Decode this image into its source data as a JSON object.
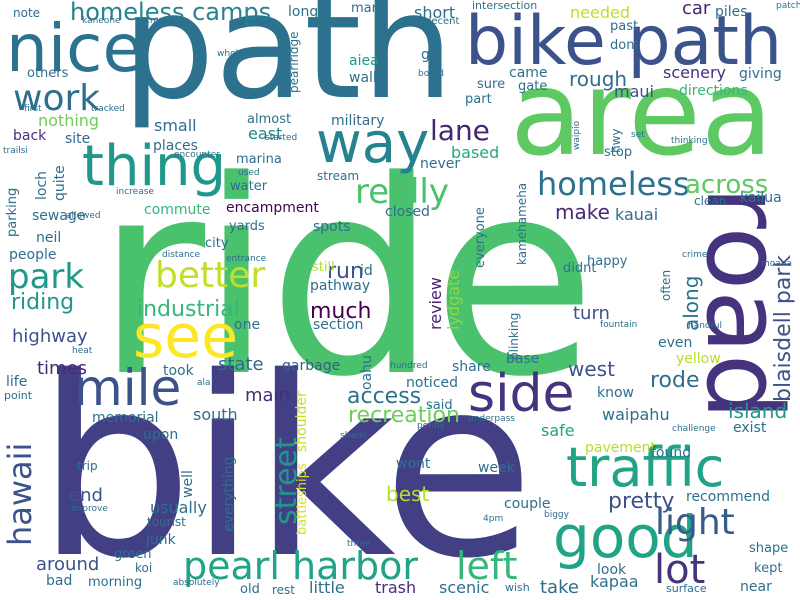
{
  "title": "word cloud",
  "words": [
    {
      "text": "ride",
      "color": "#4ac16d"
    },
    {
      "text": "bike",
      "color": "#423f85"
    },
    {
      "text": "path",
      "color": "#2c728e"
    },
    {
      "text": "area",
      "color": "#5ec962"
    },
    {
      "text": "road",
      "color": "#46337e"
    },
    {
      "text": "bike path",
      "color": "#3b528b"
    },
    {
      "text": "nice",
      "color": "#2c728e"
    },
    {
      "text": "see",
      "color": "#fde725"
    },
    {
      "text": "way",
      "color": "#26828e"
    },
    {
      "text": "thing",
      "color": "#1f988b"
    },
    {
      "text": "traffic",
      "color": "#20a386"
    },
    {
      "text": "side",
      "color": "#46337e"
    },
    {
      "text": "good",
      "color": "#20a386"
    },
    {
      "text": "mile",
      "color": "#3b528b"
    },
    {
      "text": "pearl harbor",
      "color": "#20a386"
    },
    {
      "text": "left",
      "color": "#35b779"
    },
    {
      "text": "light",
      "color": "#365c8d"
    },
    {
      "text": "lot",
      "color": "#46337e"
    },
    {
      "text": "better",
      "color": "#c2df23"
    },
    {
      "text": "work",
      "color": "#2e6f8e"
    },
    {
      "text": "park",
      "color": "#1f988b"
    },
    {
      "text": "hawaii",
      "color": "#3b528b"
    },
    {
      "text": "street",
      "color": "#1f988b"
    },
    {
      "text": "homeless",
      "color": "#2c728e"
    },
    {
      "text": "really",
      "color": "#4ac16d"
    },
    {
      "text": "lane",
      "color": "#482475"
    },
    {
      "text": "homeless camps",
      "color": "#26828e"
    },
    {
      "text": "across",
      "color": "#5ec962"
    },
    {
      "text": "blaisdell park",
      "color": "#3b528b"
    },
    {
      "text": "industrial",
      "color": "#35b779"
    },
    {
      "text": "riding",
      "color": "#1f988b"
    },
    {
      "text": "much",
      "color": "#440154"
    },
    {
      "text": "run",
      "color": "#3b528b"
    },
    {
      "text": "access",
      "color": "#2c728e"
    },
    {
      "text": "recreation",
      "color": "#6ece58"
    },
    {
      "text": "rode",
      "color": "#2e6f8e"
    },
    {
      "text": "island",
      "color": "#1f988b"
    },
    {
      "text": "west",
      "color": "#3b528b"
    },
    {
      "text": "pretty",
      "color": "#3b528b"
    },
    {
      "text": "best",
      "color": "#b5de2b"
    },
    {
      "text": "make",
      "color": "#482878"
    },
    {
      "text": "along",
      "color": "#2c728e"
    },
    {
      "text": "turn",
      "color": "#3b528b"
    },
    {
      "text": "main",
      "color": "#472d7b"
    },
    {
      "text": "state",
      "color": "#31688e"
    },
    {
      "text": "highway",
      "color": "#3b528b"
    },
    {
      "text": "times",
      "color": "#482878"
    },
    {
      "text": "end",
      "color": "#3b528b"
    },
    {
      "text": "around",
      "color": "#3b528b"
    },
    {
      "text": "take",
      "color": "#2e6f8e"
    },
    {
      "text": "kapaa",
      "color": "#2c728e"
    },
    {
      "text": "trash",
      "color": "#472d7b"
    },
    {
      "text": "scenic",
      "color": "#2e6f8e"
    },
    {
      "text": "little",
      "color": "#2e6f8e"
    },
    {
      "text": "usually",
      "color": "#2e6f8e"
    },
    {
      "text": "safe",
      "color": "#20a386"
    },
    {
      "text": "review",
      "color": "#481f70"
    },
    {
      "text": "lydgate",
      "color": "#8fd744"
    },
    {
      "text": "everything",
      "color": "#2e6f8e"
    },
    {
      "text": "battleships",
      "color": "#d8e219"
    },
    {
      "text": "shoulder",
      "color": "#c2df23"
    },
    {
      "text": "section",
      "color": "#2c728e"
    },
    {
      "text": "pathway",
      "color": "#2e6f8e"
    },
    {
      "text": "garbage",
      "color": "#365c8d"
    },
    {
      "text": "encampment",
      "color": "#440154"
    },
    {
      "text": "commute",
      "color": "#35b779"
    },
    {
      "text": "places",
      "color": "#2e6f8e"
    },
    {
      "text": "closed",
      "color": "#2e6f8e"
    },
    {
      "text": "kauai",
      "color": "#2e6f8e"
    },
    {
      "text": "rough",
      "color": "#2e6f8e"
    },
    {
      "text": "scenery",
      "color": "#472d7b"
    },
    {
      "text": "directions",
      "color": "#35b779"
    },
    {
      "text": "maui",
      "color": "#3b528b"
    },
    {
      "text": "car",
      "color": "#481f70"
    },
    {
      "text": "needed",
      "color": "#bddf26"
    },
    {
      "text": "small",
      "color": "#2e6f8e"
    },
    {
      "text": "military",
      "color": "#2e6f8e"
    },
    {
      "text": "based",
      "color": "#22a884"
    },
    {
      "text": "nothing",
      "color": "#6ece58"
    },
    {
      "text": "east",
      "color": "#26828e"
    },
    {
      "text": "back",
      "color": "#472d7b"
    },
    {
      "text": "site",
      "color": "#31688e"
    },
    {
      "text": "aiea",
      "color": "#1f988b"
    },
    {
      "text": "walk",
      "color": "#2e6f8e"
    },
    {
      "text": "memorial",
      "color": "#2e6f8e"
    },
    {
      "text": "south",
      "color": "#2e6f8e"
    },
    {
      "text": "upon",
      "color": "#2e6f8e"
    },
    {
      "text": "sewage",
      "color": "#2e6f8e"
    },
    {
      "text": "neil",
      "color": "#2e6f8e"
    },
    {
      "text": "people",
      "color": "#2e6f8e"
    },
    {
      "text": "parking",
      "color": "#2e6f8e"
    },
    {
      "text": "loch",
      "color": "#2e6f8e"
    },
    {
      "text": "quite",
      "color": "#2e6f8e"
    },
    {
      "text": "spots",
      "color": "#2e6f8e"
    },
    {
      "text": "still",
      "color": "#b5de2b"
    },
    {
      "text": "one",
      "color": "#2e6f8e"
    },
    {
      "text": "id",
      "color": "#2e6f8e"
    },
    {
      "text": "oahu",
      "color": "#2e6f8e"
    },
    {
      "text": "noticed",
      "color": "#2e6f8e"
    },
    {
      "text": "took",
      "color": "#2e6f8e"
    },
    {
      "text": "said",
      "color": "#2e6f8e"
    },
    {
      "text": "share",
      "color": "#2e6f8e"
    },
    {
      "text": "base",
      "color": "#2e6f8e"
    },
    {
      "text": "know",
      "color": "#2e6f8e"
    },
    {
      "text": "even",
      "color": "#2e6f8e"
    },
    {
      "text": "yellow",
      "color": "#b5de2b"
    },
    {
      "text": "waipahu",
      "color": "#2e6f8e"
    },
    {
      "text": "exist",
      "color": "#2e6f8e"
    },
    {
      "text": "pavement",
      "color": "#b5de2b"
    },
    {
      "text": "found",
      "color": "#2e6f8e"
    },
    {
      "text": "wont",
      "color": "#2e6f8e"
    },
    {
      "text": "week",
      "color": "#2e6f8e"
    },
    {
      "text": "recommend",
      "color": "#2e6f8e"
    },
    {
      "text": "couple",
      "color": "#2e6f8e"
    },
    {
      "text": "shape",
      "color": "#2e6f8e"
    },
    {
      "text": "kept",
      "color": "#2e6f8e"
    },
    {
      "text": "near",
      "color": "#2e6f8e"
    },
    {
      "text": "look",
      "color": "#2e6f8e"
    },
    {
      "text": "junk",
      "color": "#2e6f8e"
    },
    {
      "text": "green",
      "color": "#2e6f8e"
    },
    {
      "text": "koi",
      "color": "#2e6f8e"
    },
    {
      "text": "bad",
      "color": "#2e6f8e"
    },
    {
      "text": "morning",
      "color": "#2e6f8e"
    },
    {
      "text": "old",
      "color": "#2e6f8e"
    },
    {
      "text": "rest",
      "color": "#2e6f8e"
    },
    {
      "text": "well",
      "color": "#2e6f8e"
    },
    {
      "text": "tourist",
      "color": "#2e6f8e"
    },
    {
      "text": "city",
      "color": "#2e6f8e"
    },
    {
      "text": "yards",
      "color": "#2e6f8e"
    },
    {
      "text": "water",
      "color": "#2e6f8e"
    },
    {
      "text": "marina",
      "color": "#2e6f8e"
    },
    {
      "text": "stream",
      "color": "#2e6f8e"
    },
    {
      "text": "happy",
      "color": "#2e6f8e"
    },
    {
      "text": "didnt",
      "color": "#2e6f8e"
    },
    {
      "text": "blinking",
      "color": "#2e6f8e"
    },
    {
      "text": "kamehameha",
      "color": "#2e6f8e"
    },
    {
      "text": "everyone",
      "color": "#2e6f8e"
    },
    {
      "text": "kailua",
      "color": "#2e6f8e"
    },
    {
      "text": "clean",
      "color": "#2e6f8e"
    },
    {
      "text": "hwy",
      "color": "#2e6f8e"
    },
    {
      "text": "stop",
      "color": "#2e6f8e"
    },
    {
      "text": "often",
      "color": "#2e6f8e"
    },
    {
      "text": "giving",
      "color": "#2e6f8e"
    },
    {
      "text": "piles",
      "color": "#2e6f8e"
    },
    {
      "text": "past",
      "color": "#2e6f8e"
    },
    {
      "text": "dont",
      "color": "#2e6f8e"
    },
    {
      "text": "came",
      "color": "#2e6f8e"
    },
    {
      "text": "gate",
      "color": "#2e6f8e"
    },
    {
      "text": "sure",
      "color": "#2e6f8e"
    },
    {
      "text": "part",
      "color": "#2e6f8e"
    },
    {
      "text": "go",
      "color": "#2e6f8e"
    },
    {
      "text": "short",
      "color": "#2e6f8e"
    },
    {
      "text": "long",
      "color": "#2e6f8e"
    },
    {
      "text": "many",
      "color": "#2e6f8e"
    },
    {
      "text": "intersection",
      "color": "#2e6f8e"
    },
    {
      "text": "decent",
      "color": "#2e6f8e"
    },
    {
      "text": "crowded",
      "color": "#2e6f8e"
    },
    {
      "text": "kaneohe",
      "color": "#2e6f8e"
    },
    {
      "text": "note",
      "color": "#2e6f8e"
    },
    {
      "text": "others",
      "color": "#2e6f8e"
    },
    {
      "text": "first",
      "color": "#2e6f8e"
    },
    {
      "text": "tracked",
      "color": "#2e6f8e"
    },
    {
      "text": "whole",
      "color": "#2e6f8e"
    },
    {
      "text": "pearlridge",
      "color": "#2e6f8e"
    },
    {
      "text": "almost",
      "color": "#2e6f8e"
    },
    {
      "text": "started",
      "color": "#2e6f8e"
    },
    {
      "text": "encounter",
      "color": "#2e6f8e"
    },
    {
      "text": "trailsi",
      "color": "#2e6f8e"
    },
    {
      "text": "increase",
      "color": "#2e6f8e"
    },
    {
      "text": "used",
      "color": "#2e6f8e"
    },
    {
      "text": "allowed",
      "color": "#2e6f8e"
    },
    {
      "text": "never",
      "color": "#2e6f8e"
    },
    {
      "text": "board",
      "color": "#2e6f8e"
    },
    {
      "text": "waipio",
      "color": "#2e6f8e"
    },
    {
      "text": "thinking",
      "color": "#2e6f8e"
    },
    {
      "text": "set",
      "color": "#2e6f8e"
    },
    {
      "text": "patch",
      "color": "#2e6f8e"
    },
    {
      "text": "distance",
      "color": "#2e6f8e"
    },
    {
      "text": "entrance",
      "color": "#2e6f8e"
    },
    {
      "text": "crime",
      "color": "#2e6f8e"
    },
    {
      "text": "moana",
      "color": "#2e6f8e"
    },
    {
      "text": "fountain",
      "color": "#2e6f8e"
    },
    {
      "text": "handful",
      "color": "#2e6f8e"
    },
    {
      "text": "heat",
      "color": "#2e6f8e"
    },
    {
      "text": "ala",
      "color": "#2e6f8e"
    },
    {
      "text": "hundred",
      "color": "#2e6f8e"
    },
    {
      "text": "life",
      "color": "#2e6f8e"
    },
    {
      "text": "point",
      "color": "#2e6f8e"
    },
    {
      "text": "penny",
      "color": "#2e6f8e"
    },
    {
      "text": "underpass",
      "color": "#2e6f8e"
    },
    {
      "text": "challenge",
      "color": "#2e6f8e"
    },
    {
      "text": "shade",
      "color": "#2e6f8e"
    },
    {
      "text": "trip",
      "color": "#2e6f8e"
    },
    {
      "text": "improve",
      "color": "#2e6f8e"
    },
    {
      "text": "4pm",
      "color": "#2e6f8e"
    },
    {
      "text": "biggy",
      "color": "#2e6f8e"
    },
    {
      "text": "three",
      "color": "#2e6f8e"
    },
    {
      "text": "absolutely",
      "color": "#2e6f8e"
    },
    {
      "text": "wish",
      "color": "#2e6f8e"
    },
    {
      "text": "surface",
      "color": "#2e6f8e"
    }
  ]
}
